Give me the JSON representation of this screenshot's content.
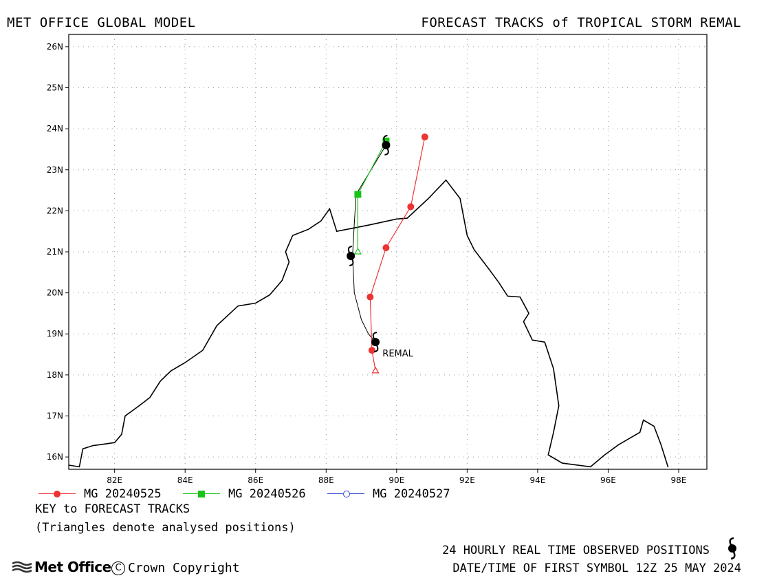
{
  "header": {
    "left_title": "MET OFFICE GLOBAL MODEL",
    "right_title": "FORECAST TRACKS of TROPICAL STORM REMAL"
  },
  "map": {
    "lon_range": [
      80.7,
      98.8
    ],
    "lat_range": [
      15.7,
      26.3
    ],
    "lon_ticks": [
      "82E",
      "84E",
      "86E",
      "88E",
      "90E",
      "92E",
      "94E",
      "96E",
      "98E"
    ],
    "lat_ticks": [
      "16N",
      "17N",
      "18N",
      "19N",
      "20N",
      "21N",
      "22N",
      "23N",
      "24N",
      "25N",
      "26N"
    ],
    "gridlines": true,
    "storm_label": "REMAL",
    "coastline": [
      [
        80.7,
        15.8
      ],
      [
        81.0,
        15.76
      ],
      [
        81.1,
        16.2
      ],
      [
        81.4,
        16.28
      ],
      [
        81.6,
        16.3
      ],
      [
        82.0,
        16.35
      ],
      [
        82.2,
        16.55
      ],
      [
        82.3,
        17.0
      ],
      [
        82.7,
        17.25
      ],
      [
        83.0,
        17.45
      ],
      [
        83.3,
        17.85
      ],
      [
        83.6,
        18.1
      ],
      [
        84.0,
        18.3
      ],
      [
        84.5,
        18.6
      ],
      [
        84.9,
        19.2
      ],
      [
        85.5,
        19.68
      ],
      [
        86.0,
        19.75
      ],
      [
        86.4,
        19.95
      ],
      [
        86.75,
        20.3
      ],
      [
        86.95,
        20.75
      ],
      [
        86.85,
        21.0
      ],
      [
        87.05,
        21.4
      ],
      [
        87.5,
        21.55
      ],
      [
        87.85,
        21.75
      ],
      [
        88.1,
        22.05
      ],
      [
        88.3,
        21.5
      ],
      [
        89.2,
        21.65
      ],
      [
        90.0,
        21.8
      ],
      [
        90.3,
        21.82
      ],
      [
        90.9,
        22.3
      ],
      [
        91.4,
        22.75
      ],
      [
        91.8,
        22.3
      ],
      [
        92.0,
        21.4
      ],
      [
        92.2,
        21.05
      ],
      [
        92.6,
        20.6
      ],
      [
        92.9,
        20.25
      ],
      [
        93.15,
        19.92
      ],
      [
        93.5,
        19.9
      ],
      [
        93.75,
        19.5
      ],
      [
        93.6,
        19.3
      ],
      [
        93.85,
        18.85
      ],
      [
        94.2,
        18.8
      ],
      [
        94.45,
        18.15
      ],
      [
        94.6,
        17.25
      ],
      [
        94.45,
        16.6
      ],
      [
        94.3,
        16.05
      ],
      [
        94.7,
        15.85
      ],
      [
        95.5,
        15.76
      ],
      [
        95.9,
        16.05
      ],
      [
        96.3,
        16.3
      ],
      [
        96.9,
        16.6
      ],
      [
        97.0,
        16.9
      ],
      [
        97.3,
        16.75
      ],
      [
        97.5,
        16.3
      ],
      [
        97.7,
        15.75
      ]
    ],
    "observed_positions": [
      [
        89.4,
        18.8
      ],
      [
        88.7,
        20.9
      ],
      [
        89.7,
        23.6
      ]
    ],
    "observed_track": [
      [
        89.4,
        18.8
      ],
      [
        89.2,
        19.0
      ],
      [
        89.0,
        19.35
      ],
      [
        88.8,
        20.0
      ],
      [
        88.75,
        20.9
      ],
      [
        88.8,
        21.7
      ],
      [
        88.85,
        22.4
      ],
      [
        89.7,
        23.6
      ]
    ]
  },
  "tracks": [
    {
      "name": "MG 20240525",
      "color": "#ee3333",
      "marker": "circle-filled",
      "points": [
        [
          89.4,
          18.1
        ],
        [
          89.3,
          18.6
        ],
        [
          89.25,
          19.9
        ],
        [
          89.7,
          21.1
        ],
        [
          90.4,
          22.1
        ],
        [
          90.8,
          23.8
        ]
      ]
    },
    {
      "name": "MG 20240526",
      "color": "#18c418",
      "marker": "square-filled",
      "points": [
        [
          88.9,
          21.0
        ],
        [
          88.9,
          22.4
        ],
        [
          89.7,
          23.7
        ]
      ]
    },
    {
      "name": "MG 20240527",
      "color": "#3348d8",
      "marker": "circle-open",
      "points": []
    }
  ],
  "key": {
    "title": "KEY to FORECAST TRACKS",
    "note": "(Triangles denote analysed positions)"
  },
  "footer": {
    "observed_label": "24 HOURLY REAL TIME OBSERVED POSITIONS",
    "datetime": "DATE/TIME OF FIRST SYMBOL 12Z 25 MAY 2024",
    "logo_text": "Met Office",
    "copyright": "Crown Copyright",
    "copyright_symbol": "C"
  }
}
